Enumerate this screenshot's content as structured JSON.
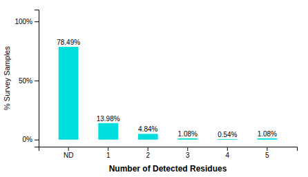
{
  "chart_data": {
    "type": "bar",
    "categories": [
      "ND",
      "1",
      "2",
      "3",
      "4",
      "5"
    ],
    "values": [
      78.49,
      13.98,
      4.84,
      1.08,
      0.54,
      1.08
    ],
    "value_labels": [
      "78.49%",
      "13.98%",
      "4.84%",
      "1.08%",
      "0.54%",
      "1.08%"
    ],
    "data_labels": true,
    "color": "#00DDDD",
    "xlabel": "Number of Detected Residues",
    "ylabel": "% Survey Samples",
    "ylim": [
      -6,
      110
    ],
    "yticks": [
      {
        "value": 0,
        "label": "0%"
      },
      {
        "value": 50,
        "label": "50%"
      },
      {
        "value": 100,
        "label": "100%"
      }
    ],
    "grid": false
  }
}
